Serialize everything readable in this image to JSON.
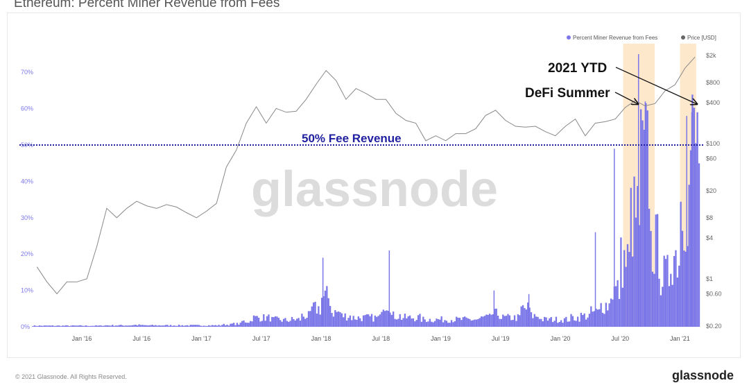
{
  "chart_data": {
    "type": "bar+line",
    "title": "Ethereum: Percent Miner Revenue from Fees",
    "legend": {
      "placement": "top-right",
      "entries": [
        "Percent Miner Revenue from Fees",
        "Price [USD]"
      ]
    },
    "colors": {
      "fees": "#7b77e8",
      "price": "#888888",
      "highlight": "#fde8cc",
      "reference_line": "#1f1fa0"
    },
    "y_left": {
      "ticks": [
        "0%",
        "10%",
        "20%",
        "30%",
        "40%",
        "50%",
        "60%",
        "70%"
      ],
      "range": [
        0,
        70
      ],
      "unit": "%"
    },
    "y_right": {
      "scale": "log",
      "ticks": [
        {
          "label": "$0.20",
          "value": 0.2
        },
        {
          "label": "$0.60",
          "value": 0.6
        },
        {
          "label": "$1",
          "value": 1
        },
        {
          "label": "$4",
          "value": 4
        },
        {
          "label": "$8",
          "value": 8
        },
        {
          "label": "$20",
          "value": 20
        },
        {
          "label": "$60",
          "value": 60
        },
        {
          "label": "$100",
          "value": 100
        },
        {
          "label": "$400",
          "value": 400
        },
        {
          "label": "$800",
          "value": 800
        },
        {
          "label": "$2k",
          "value": 2000
        }
      ]
    },
    "x_ticks": [
      {
        "label": "Jan '16",
        "date": "2016-01"
      },
      {
        "label": "Jul '16",
        "date": "2016-07"
      },
      {
        "label": "Jan '17",
        "date": "2017-01"
      },
      {
        "label": "Jul '17",
        "date": "2017-07"
      },
      {
        "label": "Jan '18",
        "date": "2018-01"
      },
      {
        "label": "Jul '18",
        "date": "2018-07"
      },
      {
        "label": "Jan '19",
        "date": "2019-01"
      },
      {
        "label": "Jul '19",
        "date": "2019-07"
      },
      {
        "label": "Jan '20",
        "date": "2020-01"
      },
      {
        "label": "Jul '20",
        "date": "2020-07"
      },
      {
        "label": "Jan '21",
        "date": "2021-01"
      }
    ],
    "months_start": "2015-08",
    "series": [
      {
        "name": "Percent Miner Revenue from Fees",
        "type": "bar",
        "values": [
          0.3,
          0.3,
          0.3,
          0.3,
          0.3,
          0.3,
          0.3,
          0.4,
          0.4,
          0.4,
          0.5,
          0.4,
          0.4,
          0.4,
          0.4,
          0.4,
          0.4,
          0.4,
          0.4,
          0.6,
          0.8,
          1.5,
          2.5,
          2.5,
          2,
          1.8,
          2,
          3,
          5,
          8,
          4,
          3,
          2.5,
          2.5,
          2.5,
          7,
          3,
          2.5,
          2.5,
          2,
          2,
          2,
          2,
          2,
          2,
          2.5,
          3.5,
          2.5,
          2.5,
          5,
          3,
          2,
          2,
          2,
          2.5,
          3,
          4,
          6,
          10,
          18,
          30,
          45,
          22,
          14,
          20,
          35,
          50
        ]
      },
      {
        "name": "Price [USD]",
        "type": "line",
        "scale": "log",
        "values": [
          1.5,
          0.9,
          0.6,
          0.9,
          0.9,
          1.0,
          3,
          11,
          8,
          11,
          14,
          12,
          11,
          12.5,
          11.5,
          9.5,
          8,
          10,
          13,
          45,
          80,
          200,
          350,
          200,
          330,
          290,
          300,
          450,
          750,
          1200,
          850,
          450,
          650,
          550,
          450,
          450,
          280,
          220,
          200,
          110,
          130,
          110,
          140,
          140,
          165,
          260,
          310,
          220,
          180,
          175,
          180,
          150,
          130,
          180,
          230,
          130,
          200,
          210,
          230,
          340,
          430,
          360,
          390,
          600,
          740,
          1300,
          1900
        ]
      }
    ],
    "spikes": [
      {
        "date": "2018-01-05",
        "value": 19
      },
      {
        "date": "2018-07-25",
        "value": 21
      },
      {
        "date": "2019-06-10",
        "value": 10
      },
      {
        "date": "2019-09-25",
        "value": 9
      },
      {
        "date": "2020-04-15",
        "value": 26
      },
      {
        "date": "2020-06-12",
        "value": 49
      },
      {
        "date": "2020-08-25",
        "value": 75
      },
      {
        "date": "2020-09-15",
        "value": 62
      },
      {
        "date": "2021-01-20",
        "value": 58
      },
      {
        "date": "2021-02-05",
        "value": 59
      }
    ],
    "highlights": [
      {
        "label": "DeFi Summer",
        "start": "2020-07-10",
        "end": "2020-10-15"
      },
      {
        "label": "2021 YTD",
        "start": "2021-01-01",
        "end": "2021-02-20"
      }
    ],
    "reference_line": {
      "value": 50,
      "label": "50% Fee Revenue"
    },
    "annotations": [
      "2021 YTD",
      "DeFi Summer"
    ]
  },
  "watermark": "glassnode",
  "footer": {
    "copyright": "© 2021 Glassnode. All Rights Reserved.",
    "brand": "glassnode"
  }
}
